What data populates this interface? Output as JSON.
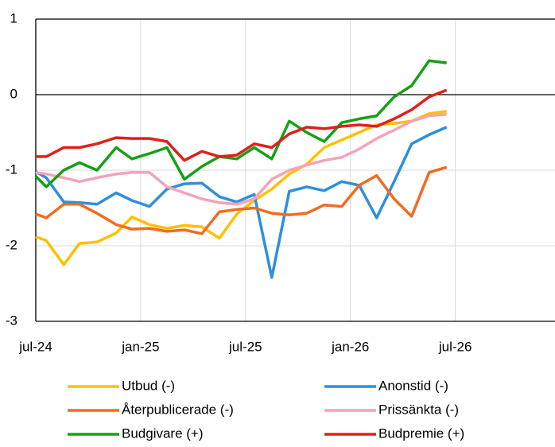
{
  "chart_data": {
    "type": "line",
    "x": [
      0,
      0.6,
      1.6,
      2.5,
      3.5,
      4.6,
      5.5,
      6.5,
      7.5,
      8.5,
      9.5,
      10.5,
      11.5,
      12.5,
      13.5,
      14.5,
      15.5,
      16.5,
      17.5,
      18.5,
      19.5,
      20.5,
      21.5,
      22.5,
      23.5
    ],
    "xlim": [
      0,
      29.7
    ],
    "xticks": [
      {
        "value": 0,
        "label": "jul-24"
      },
      {
        "value": 6,
        "label": "jan-25"
      },
      {
        "value": 12,
        "label": "jul-25"
      },
      {
        "value": 18,
        "label": "jan-26"
      },
      {
        "value": 24,
        "label": "jul-26"
      }
    ],
    "ylim": [
      -3,
      1
    ],
    "yticks": [
      -3,
      -2,
      -1,
      0,
      1
    ],
    "grid": true,
    "legend": "bottom",
    "series": [
      {
        "name": "Utbud (-)",
        "color": "#ffc000",
        "values": [
          -1.88,
          -1.93,
          -2.25,
          -1.97,
          -1.95,
          -1.83,
          -1.62,
          -1.72,
          -1.77,
          -1.73,
          -1.75,
          -1.9,
          -1.58,
          -1.4,
          -1.25,
          -1.05,
          -0.92,
          -0.7,
          -0.6,
          -0.5,
          -0.4,
          -0.38,
          -0.35,
          -0.25,
          -0.22
        ]
      },
      {
        "name": "Anonstid (-)",
        "color": "#2f8fdc",
        "values": [
          -1.02,
          -1.1,
          -1.42,
          -1.43,
          -1.45,
          -1.3,
          -1.4,
          -1.48,
          -1.25,
          -1.18,
          -1.17,
          -1.35,
          -1.42,
          -1.32,
          -2.42,
          -1.28,
          -1.22,
          -1.27,
          -1.15,
          -1.2,
          -1.63,
          -1.15,
          -0.65,
          -0.53,
          -0.43
        ]
      },
      {
        "name": "Återpublicerade (-)",
        "color": "#f26b21",
        "values": [
          -1.58,
          -1.63,
          -1.45,
          -1.45,
          -1.57,
          -1.72,
          -1.78,
          -1.77,
          -1.81,
          -1.79,
          -1.84,
          -1.55,
          -1.52,
          -1.5,
          -1.57,
          -1.59,
          -1.57,
          -1.46,
          -1.48,
          -1.2,
          -1.07,
          -1.38,
          -1.61,
          -1.03,
          -0.96
        ]
      },
      {
        "name": "Prissänkta (-)",
        "color": "#f5a3b7",
        "values": [
          -1.03,
          -1.05,
          -1.1,
          -1.15,
          -1.1,
          -1.05,
          -1.03,
          -1.03,
          -1.22,
          -1.3,
          -1.38,
          -1.43,
          -1.45,
          -1.38,
          -1.12,
          -1.0,
          -0.93,
          -0.87,
          -0.83,
          -0.72,
          -0.58,
          -0.47,
          -0.35,
          -0.28,
          -0.26
        ]
      },
      {
        "name": "Budgivare (+)",
        "color": "#16a016",
        "values": [
          -1.08,
          -1.22,
          -1.0,
          -0.9,
          -1.0,
          -0.7,
          -0.85,
          -0.78,
          -0.7,
          -1.12,
          -0.95,
          -0.82,
          -0.85,
          -0.7,
          -0.85,
          -0.35,
          -0.5,
          -0.62,
          -0.37,
          -0.32,
          -0.28,
          -0.03,
          0.12,
          0.45,
          0.42
        ]
      },
      {
        "name": "Budpremie (+)",
        "color": "#e0201c",
        "values": [
          -0.82,
          -0.82,
          -0.7,
          -0.7,
          -0.65,
          -0.57,
          -0.58,
          -0.58,
          -0.62,
          -0.87,
          -0.75,
          -0.82,
          -0.8,
          -0.65,
          -0.7,
          -0.52,
          -0.43,
          -0.45,
          -0.42,
          -0.4,
          -0.42,
          -0.32,
          -0.2,
          -0.03,
          0.06
        ]
      }
    ]
  }
}
